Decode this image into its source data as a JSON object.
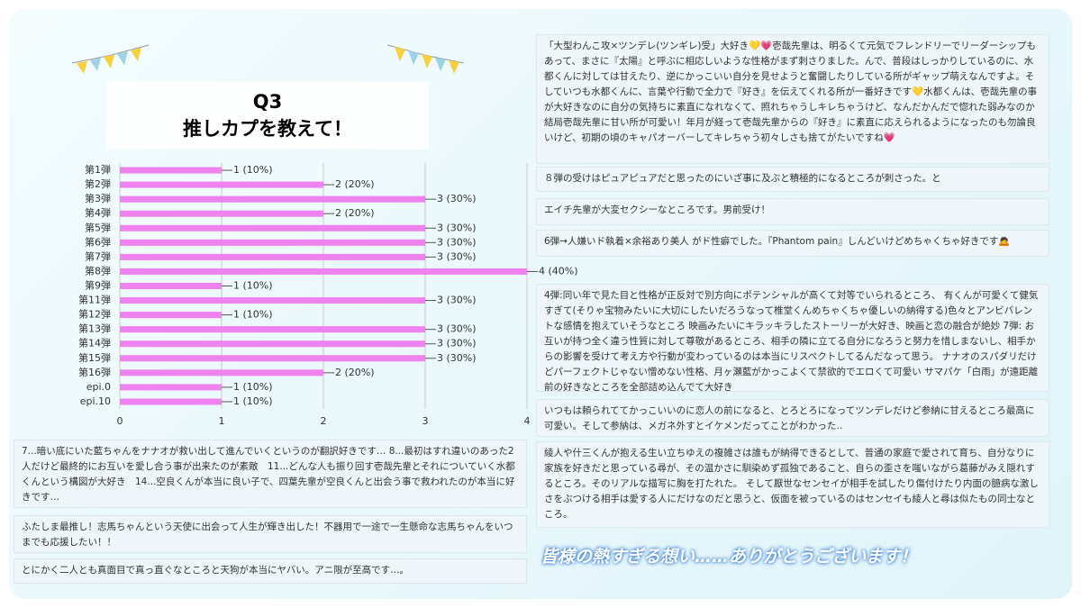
{
  "header": {
    "title_line1": "Q3",
    "title_line2": "推しカプを教えて！"
  },
  "chart_data": {
    "type": "bar",
    "orientation": "horizontal",
    "color": "#ee82ee",
    "categories": [
      "第1弾",
      "第2弾",
      "第3弾",
      "第4弾",
      "第5弾",
      "第6弾",
      "第7弾",
      "第8弾",
      "第9弾",
      "第11弾",
      "第12弾",
      "第13弾",
      "第14弾",
      "第15弾",
      "第16弾",
      "epi.0",
      "epi.10"
    ],
    "values": [
      1,
      2,
      3,
      2,
      3,
      3,
      3,
      4,
      1,
      3,
      1,
      3,
      3,
      3,
      2,
      1,
      1
    ],
    "value_labels": [
      "1 (10%)",
      "2 (20%)",
      "3 (30%)",
      "2 (20%)",
      "3 (30%)",
      "3 (30%)",
      "3 (30%)",
      "4 (40%)",
      "1 (10%)",
      "3 (30%)",
      "1 (10%)",
      "3 (30%)",
      "3 (30%)",
      "3 (30%)",
      "2 (20%)",
      "1 (10%)",
      "1 (10%)"
    ],
    "xlim": [
      0,
      4
    ],
    "xticks": [
      0,
      1,
      2,
      3,
      4
    ],
    "grid": true
  },
  "comments_right": [
    "「大型わんこ攻×ツンデレ(ツンギレ)受」大好き💛💗壱哉先輩は、明るくて元気でフレンドリーでリーダーシップもあって、まさに『太陽』と呼ぶに相応しいような性格がまず刺さりました。んで、普段はしっかりしているのに、水都くんに対しては甘えたり、逆にかっこいい自分を見せようと奮闘したりしている所がギャップ萌えなんですよ。そしていつも水都くんに、言葉や行動で全力で『好き』を伝えてくれる所が一番好きです💛水都くんは、壱哉先輩の事が大好きなのに自分の気持ちに素直になれなくて、照れちゃうしキレちゃうけど、なんだかんだで惚れた弱みなのか結局壱哉先輩に甘い所が可愛い！年月が経って壱哉先輩からの『好き』に素直に応えられるようになったのも勿論良いけど、初期の頃のキャパオーバーしてキレちゃう初々しさも捨てがたいですね💗",
    "８弾の受けはピュアピュアだと思ったのにいざ事に及ぶと積極的になるところが刺さった。と",
    "エイチ先輩が大変セクシーなところです。男前受け！",
    "6弾→人嫌いド執着×余裕あり美人 がド性癖でした。『Phantom pain』しんどいけどめちゃくちゃ好きです🙇",
    "4弾:同い年で見た目と性格が正反対で別方向にポテンシャルが高くて対等でいられるところ、 有くんが可愛くて健気すぎて(そりゃ宝物みたいに大切にしたいだろうなって椎堂くんめちゃくちゃ優しいの納得する)色々とアンビバレントな感情を抱えていそうなところ 映画みたいにキラッキラしたストーリーが大好き、映画と恋の融合が絶妙 7弾: お互いが持つ全く違う性質に対して尊敬があるところ、相手の隣に立てる自分になろうと努力を惜しまないし、相手からの影響を受けて考え方や行動が変わっているのは本当にリスペクトしてるんだなって思う。 ナナオのスパダリだけどパーフェクトじゃない憎めない性格、月ヶ瀬藍がかっこよくて禁欲的でエロくて可愛い サマパケ「白雨」が遠距離前の好きなところを全部詰め込んでて大好き",
    "いつもは頼られててかっこいいのに恋人の前になると、とろとろになってツンデレだけど参納に甘えるところ最高に可愛い。そして参納は、メガネ外すとイケメンだってことがわかった‥",
    "綾人や什三くんが抱える生い立ちゆえの複雑さは誰もが納得できるとして、普通の家庭で愛されて育ち、自分なりに家族を好きだと思っている尋が、その温かさに馴染めず孤独であること、自らの歪さを嗤いながら葛藤がみえ隠れするところ。そのリアルな描写に胸を打たれた。 そして厭世なセンセイが相手を試したり傷付けたり内面の臆病な激しさをぶつける相手は愛する人にだけなのだと思うと、仮面を被っているのはセンセイも綾人と尋は似たもの同士なところ。"
  ],
  "comments_left": [
    "7...暗い底にいた藍ちゃんをナナオが救い出して進んでいくというのが翻訳好きです… 8...最初はすれ違いのあった2人だけど最終的にお互いを愛し合う事が出来たのが素敵　11...どんな人も振り回す壱哉先輩とそれについていく水都くんという構図が大好き　14...空良くんが本当に良い子で、四葉先輩が空良くんと出会う事で救われたのが本当に好きです…",
    "ふたしま最推し！志馬ちゃんという天使に出会って人生が輝き出した！不器用で一途で一生懸命な志馬ちゃんをいつまでも応援したい！！",
    "とにかく二人とも真面目で真っ直ぐなところと天狗が本当にヤバい。アニ限が至高です…。"
  ],
  "footer": "皆様の熱すぎる想い……ありがとうございます！"
}
